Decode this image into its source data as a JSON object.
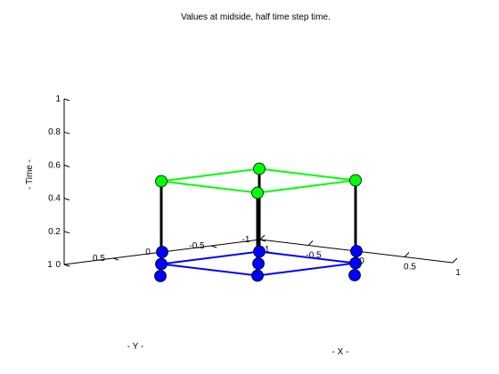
{
  "chart_data": {
    "type": "scatter3d",
    "title": "Values at midside, half time step time.",
    "xlabel": "- X -",
    "ylabel": "- Y -",
    "zlabel": "- Time -",
    "xlim": [
      -1,
      1
    ],
    "ylim": [
      -1,
      1
    ],
    "zlim": [
      0,
      1
    ],
    "x_ticks": [
      "-1",
      "-0.5",
      "0",
      "0.5",
      "1"
    ],
    "y_ticks": [
      "-1",
      "-0.5",
      "0",
      "0.5",
      "1"
    ],
    "z_ticks": [
      "0",
      "0.2",
      "0.4",
      "0.6",
      "0.8",
      "1"
    ],
    "grid": false,
    "colors": {
      "base_points": "#0000ff",
      "base_square": "#0000ff",
      "top_points": "#00ff00",
      "top_square": "#00ff00",
      "stems": "#000000"
    },
    "base_points": [
      {
        "x": 0,
        "y": 0,
        "z": 0
      },
      {
        "x": -1,
        "y": 0,
        "z": 0
      },
      {
        "x": 1,
        "y": 0,
        "z": 0
      },
      {
        "x": 0,
        "y": -1,
        "z": 0
      },
      {
        "x": 0,
        "y": 1,
        "z": 0
      },
      {
        "x": -0.5,
        "y": -0.5,
        "z": 0
      },
      {
        "x": 0.5,
        "y": -0.5,
        "z": 0
      },
      {
        "x": -0.5,
        "y": 0.5,
        "z": 0
      },
      {
        "x": 0.5,
        "y": 0.5,
        "z": 0
      }
    ],
    "top_points": [
      {
        "x": -0.5,
        "y": -0.5,
        "z": 0.5
      },
      {
        "x": 0.5,
        "y": -0.5,
        "z": 0.5
      },
      {
        "x": -0.5,
        "y": 0.5,
        "z": 0.5
      },
      {
        "x": 0.5,
        "y": 0.5,
        "z": 0.5
      }
    ],
    "base_square": [
      [
        -0.5,
        -0.5,
        0
      ],
      [
        0.5,
        -0.5,
        0
      ],
      [
        0.5,
        0.5,
        0
      ],
      [
        -0.5,
        0.5,
        0
      ]
    ],
    "top_square": [
      [
        -0.5,
        -0.5,
        0.5
      ],
      [
        0.5,
        -0.5,
        0.5
      ],
      [
        0.5,
        0.5,
        0.5
      ],
      [
        -0.5,
        0.5,
        0.5
      ]
    ]
  }
}
